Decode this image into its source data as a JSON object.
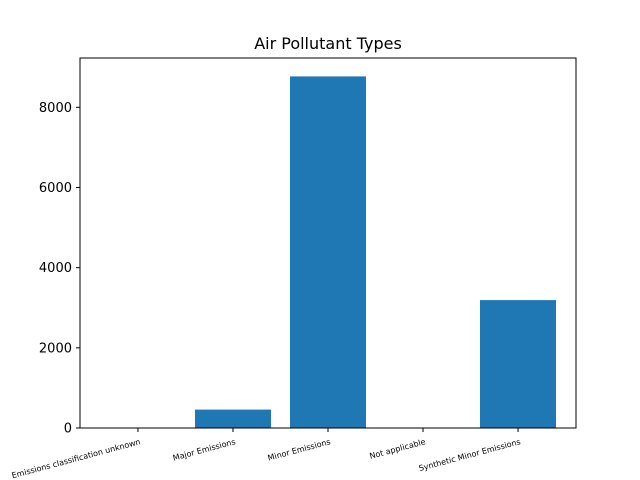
{
  "chart_data": {
    "type": "bar",
    "title": "Air Pollutant Types",
    "xlabel": "",
    "ylabel": "",
    "categories": [
      "Emissions classification unknown",
      "Major Emissions",
      "Minor Emissions",
      "Not applicable",
      "Synthetic Minor Emissions"
    ],
    "values": [
      2,
      460,
      8770,
      3,
      3190
    ],
    "ylim": [
      0,
      9230
    ],
    "yticks": [
      0,
      2000,
      4000,
      6000,
      8000
    ],
    "grid": false,
    "bar_color": "#1f77b4"
  }
}
